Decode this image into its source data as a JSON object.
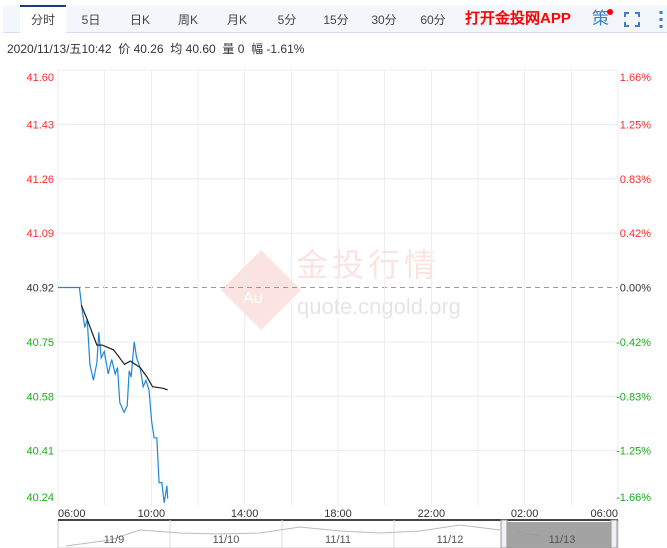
{
  "tabs": [
    {
      "label": "分时",
      "active": true
    },
    {
      "label": "5日"
    },
    {
      "label": "日K"
    },
    {
      "label": "周K"
    },
    {
      "label": "月K"
    },
    {
      "label": "5分"
    },
    {
      "label": "15分"
    },
    {
      "label": "30分"
    },
    {
      "label": "60分"
    }
  ],
  "app_link": "打开金投网APP",
  "strategy_label": "策",
  "icons": [
    "notification-dot",
    "fullscreen-icon",
    "more-vertical-icon"
  ],
  "info": {
    "datetime": "2020/11/13/五10:42",
    "price_label": "价",
    "price": "40.26",
    "avg_label": "均",
    "avg": "40.60",
    "vol_label": "量",
    "vol": "0",
    "chg_label": "幅",
    "chg": "-1.61%"
  },
  "watermark": {
    "title": "金投行情",
    "url": "quote.cngold.org",
    "logo_text": "Au"
  },
  "colors": {
    "up": "#ff2a2a",
    "down": "#1aad19",
    "price_line": "#1e88d8",
    "avg_line": "#222222",
    "accent": "#1d3d7a"
  },
  "chart_data": {
    "type": "line",
    "prev_close": 40.92,
    "ylim": [
      40.24,
      41.6
    ],
    "y_ticks_left": [
      "41.60",
      "41.43",
      "41.26",
      "41.09",
      "40.92",
      "40.75",
      "40.58",
      "40.41",
      "40.24"
    ],
    "y_ticks_right": [
      "1.66%",
      "1.25%",
      "0.83%",
      "0.42%",
      "0.00%",
      "-0.42%",
      "-0.83%",
      "-1.25%",
      "-1.66%"
    ],
    "x_ticks": [
      "06:00",
      "10:00",
      "14:00",
      "18:00",
      "22:00",
      "02:00",
      "06:00"
    ],
    "x_range_hours_from_0600": [
      0,
      24
    ],
    "grid": true,
    "series": [
      {
        "key": "price",
        "points": [
          [
            "06:00",
            40.92
          ],
          [
            "06:55",
            40.92
          ],
          [
            "07:01",
            40.86
          ],
          [
            "07:09",
            40.795
          ],
          [
            "07:15",
            40.82
          ],
          [
            "07:22",
            40.68
          ],
          [
            "07:31",
            40.63
          ],
          [
            "07:40",
            40.685
          ],
          [
            "07:45",
            40.78
          ],
          [
            "07:51",
            40.7
          ],
          [
            "07:59",
            40.72
          ],
          [
            "08:09",
            40.65
          ],
          [
            "08:18",
            40.695
          ],
          [
            "08:27",
            40.65
          ],
          [
            "08:33",
            40.67
          ],
          [
            "08:39",
            40.56
          ],
          [
            "08:50",
            40.53
          ],
          [
            "08:58",
            40.55
          ],
          [
            "09:03",
            40.66
          ],
          [
            "09:08",
            40.64
          ],
          [
            "09:16",
            40.75
          ],
          [
            "09:22",
            40.7
          ],
          [
            "09:31",
            40.67
          ],
          [
            "09:39",
            40.61
          ],
          [
            "09:46",
            40.63
          ],
          [
            "09:54",
            40.6
          ],
          [
            "10:01",
            40.5
          ],
          [
            "10:07",
            40.45
          ],
          [
            "10:14",
            40.45
          ],
          [
            "10:20",
            40.31
          ],
          [
            "10:27",
            40.31
          ],
          [
            "10:33",
            40.247
          ],
          [
            "10:40",
            40.3
          ],
          [
            "10:42",
            40.26
          ]
        ]
      },
      {
        "key": "avg",
        "points": [
          [
            "07:00",
            40.865
          ],
          [
            "07:15",
            40.82
          ],
          [
            "07:40",
            40.74
          ],
          [
            "07:54",
            40.74
          ],
          [
            "08:23",
            40.725
          ],
          [
            "08:51",
            40.68
          ],
          [
            "09:06",
            40.69
          ],
          [
            "09:31",
            40.67
          ],
          [
            "09:49",
            40.64
          ],
          [
            "10:03",
            40.61
          ],
          [
            "10:31",
            40.605
          ],
          [
            "10:42",
            40.6
          ]
        ]
      }
    ],
    "navigator": {
      "dates": [
        "11/9",
        "11/10",
        "11/11",
        "11/12",
        "11/13"
      ],
      "selected": "11/13"
    }
  }
}
